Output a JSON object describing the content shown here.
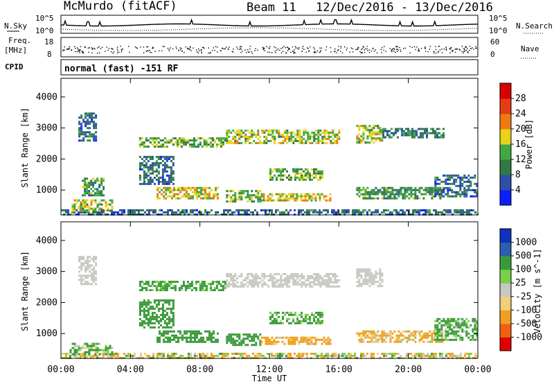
{
  "header": {
    "title": "McMurdo (fitACF)",
    "beam": "Beam 11",
    "date_range": "12/Dec/2016 - 13/Dec/2016"
  },
  "strips": {
    "nsky_label": "N.Sky",
    "nsearch_label": "N.Search",
    "noise_ticks_left": [
      "10^5",
      "10^0"
    ],
    "noise_ticks_right": [
      "10^5",
      "10^0"
    ],
    "freq_label": "Freq.",
    "freq_unit": "[MHz]",
    "freq_ticks": [
      "18",
      "8"
    ],
    "nave_label": "Nave",
    "nave_ticks": [
      "60",
      "0"
    ],
    "cpid_label": "CPID",
    "cpid_text": "normal (fast) -151 RF"
  },
  "colors": {
    "power_scale": [
      "#0a1eff",
      "#2e4fa8",
      "#2f7a45",
      "#42a842",
      "#e8d21a",
      "#f07a12",
      "#e53c16",
      "#d80000"
    ],
    "velocity_scale": [
      "#e00000",
      "#f06010",
      "#f0a020",
      "#f2cf78",
      "#c8c8c0",
      "#7ad048",
      "#3a9a3a",
      "#2a60b0",
      "#1030c0"
    ]
  },
  "chart_data": [
    {
      "type": "heatmap",
      "name": "power",
      "ylabel": "Slant Range [km]",
      "xlabel": "",
      "yticks": [
        "1000",
        "2000",
        "3000",
        "4000"
      ],
      "ylim": [
        200,
        4600
      ],
      "xlim_hours": [
        0,
        24
      ],
      "colorbar": {
        "label": "Power [dB]",
        "ticks": [
          "4",
          "8",
          "12",
          "16",
          "20",
          "24",
          "28"
        ],
        "range": [
          0,
          32
        ]
      },
      "regions": [
        {
          "t0": 0.0,
          "t1": 24.0,
          "r0": 220,
          "r1": 380,
          "v": 8
        },
        {
          "t0": 0.5,
          "t1": 3.0,
          "r0": 300,
          "r1": 700,
          "v": 16
        },
        {
          "t0": 1.0,
          "t1": 2.0,
          "r0": 2600,
          "r1": 3500,
          "v": 8
        },
        {
          "t0": 1.2,
          "t1": 2.4,
          "r0": 800,
          "r1": 1400,
          "v": 12
        },
        {
          "t0": 4.5,
          "t1": 9.5,
          "r0": 2400,
          "r1": 2700,
          "v": 14
        },
        {
          "t0": 5.5,
          "t1": 9.0,
          "r0": 750,
          "r1": 1100,
          "v": 18
        },
        {
          "t0": 4.5,
          "t1": 6.5,
          "r0": 1200,
          "r1": 2100,
          "v": 8
        },
        {
          "t0": 9.5,
          "t1": 16.0,
          "r0": 2500,
          "r1": 2950,
          "v": 16
        },
        {
          "t0": 9.5,
          "t1": 11.5,
          "r0": 650,
          "r1": 1000,
          "v": 14
        },
        {
          "t0": 11.5,
          "t1": 15.5,
          "r0": 650,
          "r1": 900,
          "v": 18
        },
        {
          "t0": 12.0,
          "t1": 15.0,
          "r0": 1300,
          "r1": 1700,
          "v": 14
        },
        {
          "t0": 17.0,
          "t1": 18.5,
          "r0": 2500,
          "r1": 3100,
          "v": 16
        },
        {
          "t0": 17.0,
          "t1": 22.0,
          "r0": 700,
          "r1": 1100,
          "v": 12
        },
        {
          "t0": 18.5,
          "t1": 22.0,
          "r0": 2700,
          "r1": 3000,
          "v": 10
        },
        {
          "t0": 21.5,
          "t1": 24.0,
          "r0": 800,
          "r1": 1500,
          "v": 8
        }
      ]
    },
    {
      "type": "heatmap",
      "name": "velocity",
      "ylabel": "Slant Range [km]",
      "xlabel": "Time UT",
      "yticks": [
        "1000",
        "2000",
        "3000",
        "4000"
      ],
      "ylim": [
        200,
        4600
      ],
      "xlim_hours": [
        0,
        24
      ],
      "xticks": [
        "00:00",
        "04:00",
        "08:00",
        "12:00",
        "16:00",
        "20:00",
        "00:00"
      ],
      "colorbar": {
        "label": "Velocity [m s^-1]",
        "ticks": [
          "1000",
          "500",
          "100",
          "25",
          "-25",
          "-100",
          "-500",
          "-1000"
        ]
      },
      "regions": [
        {
          "t0": 0.0,
          "t1": 24.0,
          "r0": 220,
          "r1": 380,
          "v": -50
        },
        {
          "t0": 0.5,
          "t1": 3.0,
          "r0": 300,
          "r1": 700,
          "v": 100
        },
        {
          "t0": 1.0,
          "t1": 2.0,
          "r0": 2600,
          "r1": 3500,
          "v": 0
        },
        {
          "t0": 4.5,
          "t1": 9.5,
          "r0": 2400,
          "r1": 2700,
          "v": 200
        },
        {
          "t0": 5.5,
          "t1": 9.0,
          "r0": 750,
          "r1": 1100,
          "v": 300
        },
        {
          "t0": 4.5,
          "t1": 6.5,
          "r0": 1200,
          "r1": 2100,
          "v": 300
        },
        {
          "t0": 9.5,
          "t1": 16.0,
          "r0": 2500,
          "r1": 2950,
          "v": 0
        },
        {
          "t0": 9.5,
          "t1": 11.5,
          "r0": 650,
          "r1": 1000,
          "v": 300
        },
        {
          "t0": 11.5,
          "t1": 15.5,
          "r0": 650,
          "r1": 900,
          "v": -200
        },
        {
          "t0": 12.0,
          "t1": 15.0,
          "r0": 1300,
          "r1": 1700,
          "v": 200
        },
        {
          "t0": 17.0,
          "t1": 18.5,
          "r0": 2500,
          "r1": 3100,
          "v": 0
        },
        {
          "t0": 17.0,
          "t1": 22.0,
          "r0": 700,
          "r1": 1100,
          "v": -150
        },
        {
          "t0": 21.5,
          "t1": 24.0,
          "r0": 800,
          "r1": 1500,
          "v": 200
        }
      ]
    }
  ]
}
